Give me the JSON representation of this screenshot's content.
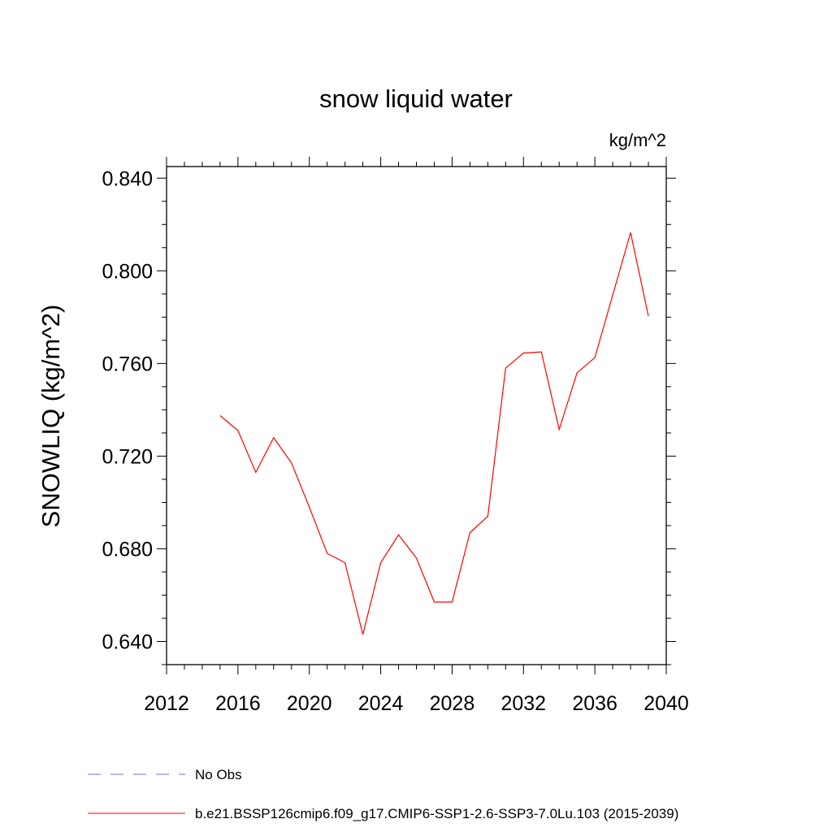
{
  "chart_data": {
    "type": "line",
    "title": "snow liquid water",
    "units": "kg/m^2",
    "ylabel": "SNOWLIQ  (kg/m^2)",
    "xlabel": "",
    "xlim": [
      2012,
      2040
    ],
    "ylim": [
      0.63,
      0.845
    ],
    "x_ticks": [
      2012,
      2016,
      2020,
      2024,
      2028,
      2032,
      2036,
      2040
    ],
    "y_ticks": [
      0.64,
      0.68,
      0.72,
      0.76,
      0.8,
      0.84
    ],
    "x_tick_labels": [
      "2012",
      "2016",
      "2020",
      "2024",
      "2028",
      "2032",
      "2036",
      "2040"
    ],
    "y_tick_labels": [
      "0.640",
      "0.680",
      "0.720",
      "0.760",
      "0.800",
      "0.840"
    ],
    "series": [
      {
        "name": "b.e21.BSSP126cmip6.f09_g17.CMIP6-SSP1-2.6-SSP3-7.0Lu.103 (2015-2039)",
        "color": "#ff0000",
        "x": [
          2015,
          2016,
          2017,
          2018,
          2019,
          2020,
          2021,
          2022,
          2023,
          2024,
          2025,
          2026,
          2027,
          2028,
          2029,
          2030,
          2031,
          2032,
          2033,
          2034,
          2035,
          2036,
          2037,
          2038,
          2039
        ],
        "y": [
          0.7375,
          0.731,
          0.713,
          0.728,
          0.717,
          0.698,
          0.678,
          0.674,
          0.643,
          0.674,
          0.686,
          0.676,
          0.657,
          0.657,
          0.687,
          0.694,
          0.758,
          0.7645,
          0.765,
          0.7315,
          0.756,
          0.7625,
          0.7895,
          0.8165,
          0.7805
        ]
      }
    ],
    "legend": [
      {
        "label": "No Obs",
        "style": "dashed",
        "color": "#7a6fc8"
      },
      {
        "label": "b.e21.BSSP126cmip6.f09_g17.CMIP6-SSP1-2.6-SSP3-7.0Lu.103 (2015-2039)",
        "style": "solid",
        "color": "#ff0000"
      }
    ]
  }
}
